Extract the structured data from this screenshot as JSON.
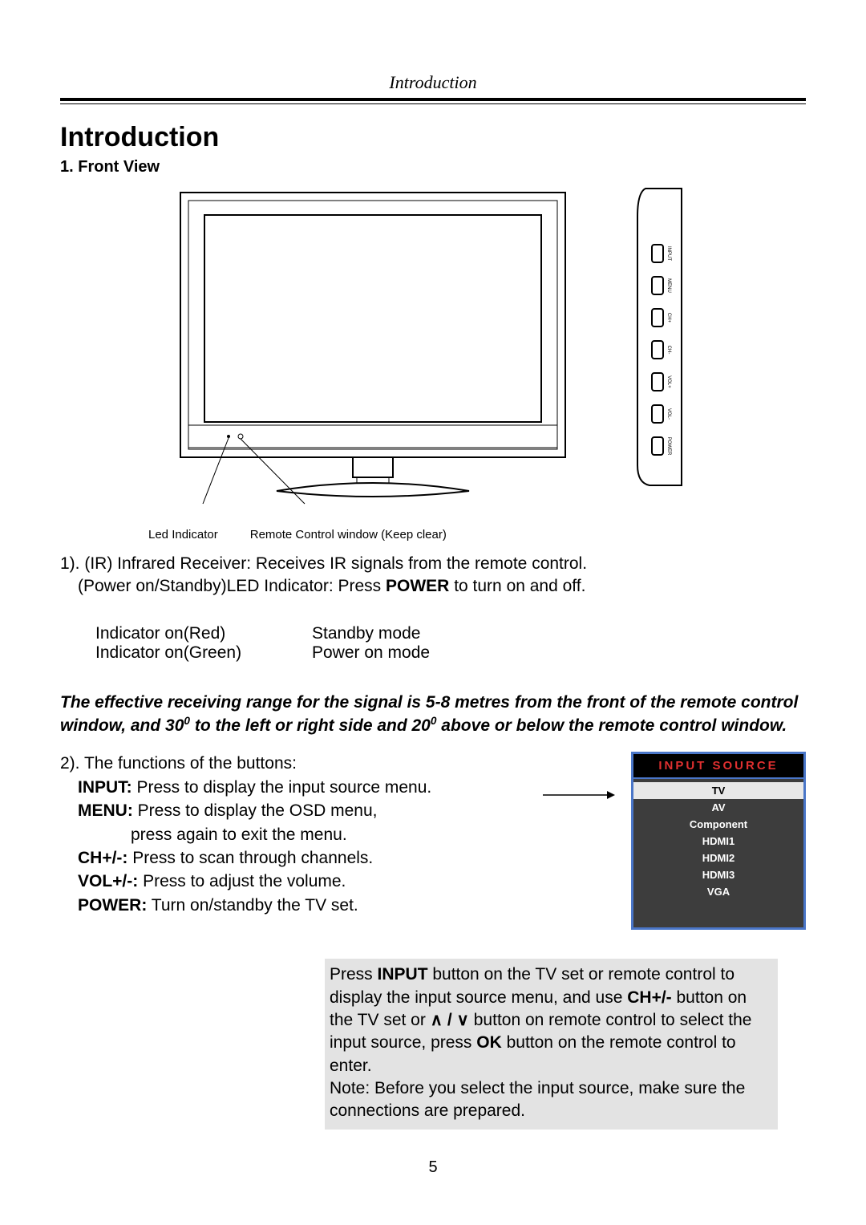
{
  "running_header": "Introduction",
  "page_title": "Introduction",
  "section_heading": "1. Front View",
  "diagram": {
    "side_buttons": [
      "INPUT",
      "MENU",
      "CH+",
      "CH-",
      "VOL+",
      "VOL-",
      "POWER"
    ],
    "callout_left": "Led Indicator",
    "callout_right": "Remote Control window (Keep clear)"
  },
  "ir_text": {
    "line1": "1). (IR) Infrared Receiver: Receives IR signals from the remote control.",
    "line2_pre": "(Power on/Standby)LED Indicator: Press ",
    "line2_bold": "POWER",
    "line2_post": " to turn on and off."
  },
  "indicator_rows": [
    {
      "c1": "Indicator on(Red)",
      "c2": "Standby mode"
    },
    {
      "c1": "Indicator on(Green)",
      "c2": "Power on mode"
    }
  ],
  "range_note": {
    "pre1": "The effective receiving range for the signal is 5-8 metres from the front of the remote control window, and 30",
    "sup1": "0",
    "mid": " to the left or right side and 20",
    "sup2": "0",
    "post": " above or below the remote control window."
  },
  "functions": {
    "intro": "2). The functions of the buttons:",
    "items": [
      {
        "label": "INPUT:",
        "desc": " Press to display the input source menu."
      },
      {
        "label": "MENU:",
        "desc": " Press to display the OSD menu,",
        "sub": "press again to exit the menu."
      },
      {
        "label": "CH+/-:",
        "desc": " Press to scan through channels."
      },
      {
        "label": "VOL+/-:",
        "desc": " Press to adjust the volume."
      },
      {
        "label": "POWER:",
        "desc": " Turn on/standby the TV set."
      }
    ]
  },
  "input_source_menu": {
    "title": "INPUT SOURCE",
    "items": [
      "TV",
      "AV",
      "Component",
      "HDMI1",
      "HDMI2",
      "HDMI3",
      "VGA"
    ],
    "selected_index": 0,
    "border_color": "#4a76c8",
    "title_color": "#e03030",
    "bg_color": "#3d3d3d"
  },
  "instruction_box": {
    "pre1": "Press ",
    "b1": "INPUT",
    "mid1": " button on the TV set or remote control to display the input source menu, and use ",
    "b2": "CH+/-",
    "mid2": " button on the TV set or ",
    "updown": "∧ / ∨",
    "mid3": " button on remote control to select the input source, press ",
    "b3": "OK",
    "post1": " button on the remote control to enter.",
    "note": "Note: Before you select the input source, make sure the connections are prepared."
  },
  "page_number": "5"
}
